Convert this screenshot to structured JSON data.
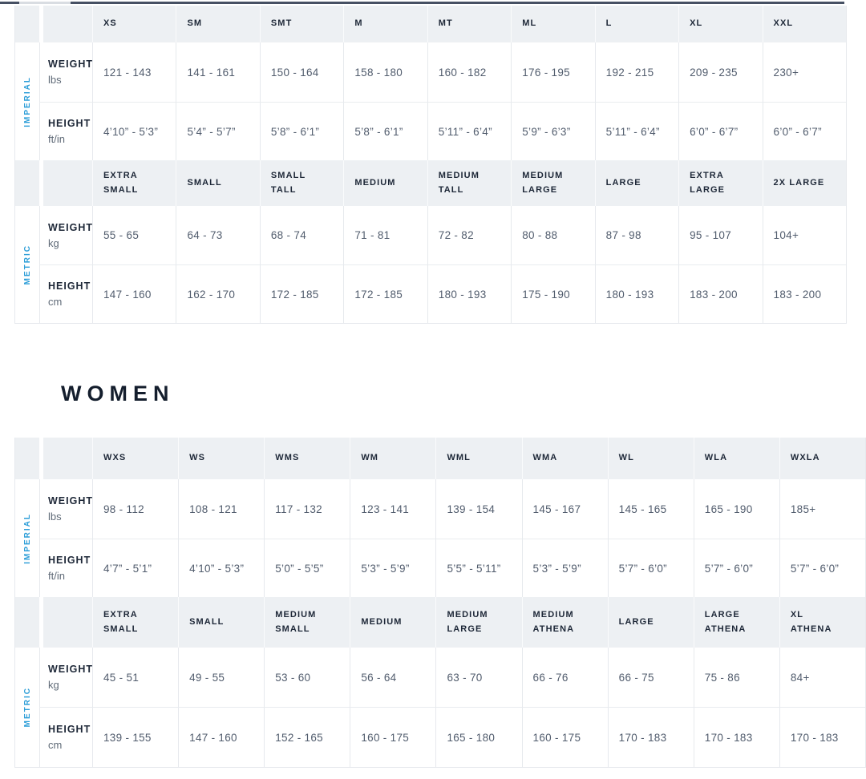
{
  "heading": {
    "women": "WOMEN"
  },
  "colors": {
    "accent_blue": "#2D9ED8",
    "header_bg": "#EDF0F3",
    "heading_text": "#141E2D",
    "value_text": "#515C6D"
  },
  "tables": [
    {
      "name": "men",
      "side_labels": [
        "IMPERIAL",
        "METRIC"
      ],
      "rows": [
        {
          "type": "header",
          "cells": [
            "XS",
            "SM",
            "SMT",
            "M",
            "MT",
            "ML",
            "L",
            "XL",
            "XXL"
          ]
        },
        {
          "type": "data",
          "label": "WEIGHT",
          "sub": "lbs",
          "cells": [
            "121 - 143",
            "141 - 161",
            "150 - 164",
            "158 - 180",
            "160 - 182",
            "176 - 195",
            "192 - 215",
            "209 - 235",
            "230+"
          ]
        },
        {
          "type": "data",
          "label": "HEIGHT",
          "sub": "ft/in",
          "cells": [
            "4’10” - 5’3”",
            "5’4” - 5’7”",
            "5’8” - 6’1”",
            "5’8” - 6’1”",
            "5’11” - 6’4”",
            "5’9” - 6’3”",
            "5’11” - 6’4”",
            "6’0” - 6’7”",
            "6’0” - 6’7”"
          ]
        },
        {
          "type": "header",
          "cells": [
            "EXTRA\nSMALL",
            "SMALL",
            "SMALL\nTALL",
            "MEDIUM",
            "MEDIUM\nTALL",
            "MEDIUM\nLARGE",
            "LARGE",
            "EXTRA\nLARGE",
            "2X LARGE"
          ]
        },
        {
          "type": "data",
          "label": "WEIGHT",
          "sub": "kg",
          "cells": [
            "55 - 65",
            "64 - 73",
            "68 - 74",
            "71 - 81",
            "72 - 82",
            "80 - 88",
            "87 - 98",
            "95 - 107",
            "104+"
          ]
        },
        {
          "type": "data",
          "label": "HEIGHT",
          "sub": "cm",
          "cells": [
            "147 - 160",
            "162 - 170",
            "172 - 185",
            "172 - 185",
            "180 - 193",
            "175 - 190",
            "180 - 193",
            "183 - 200",
            "183 - 200"
          ]
        }
      ]
    },
    {
      "name": "women",
      "side_labels": [
        "IMPERIAL",
        "METRIC"
      ],
      "rows": [
        {
          "type": "header",
          "cells": [
            "WXS",
            "WS",
            "WMS",
            "WM",
            "WML",
            "WMA",
            "WL",
            "WLA",
            "WXLA"
          ]
        },
        {
          "type": "data",
          "label": "WEIGHT",
          "sub": "lbs",
          "cells": [
            "98 - 112",
            "108 - 121",
            "117 - 132",
            "123 - 141",
            "139 - 154",
            "145 - 167",
            "145 - 165",
            "165 - 190",
            "185+"
          ]
        },
        {
          "type": "data",
          "label": "HEIGHT",
          "sub": "ft/in",
          "cells": [
            "4’7” - 5’1”",
            "4’10” - 5’3”",
            "5’0” - 5’5”",
            "5’3” - 5’9”",
            "5’5” - 5’11”",
            "5’3” - 5’9”",
            "5’7” - 6’0”",
            "5’7” - 6’0”",
            "5’7” - 6’0”"
          ]
        },
        {
          "type": "header",
          "cells": [
            "EXTRA\nSMALL",
            "SMALL",
            "MEDIUM\nSMALL",
            "MEDIUM",
            "MEDIUM\nLARGE",
            "MEDIUM\nATHENA",
            "LARGE",
            "LARGE\nATHENA",
            "XL\nATHENA"
          ]
        },
        {
          "type": "data",
          "label": "WEIGHT",
          "sub": "kg",
          "cells": [
            "45 - 51",
            "49 - 55",
            "53 - 60",
            "56 - 64",
            "63 - 70",
            "66 - 76",
            "66 - 75",
            "75 - 86",
            "84+"
          ]
        },
        {
          "type": "data",
          "label": "HEIGHT",
          "sub": "cm",
          "cells": [
            "139 - 155",
            "147 - 160",
            "152 - 165",
            "160 - 175",
            "165 - 180",
            "160 - 175",
            "170 - 183",
            "170 - 183",
            "170 - 183"
          ]
        }
      ]
    }
  ]
}
